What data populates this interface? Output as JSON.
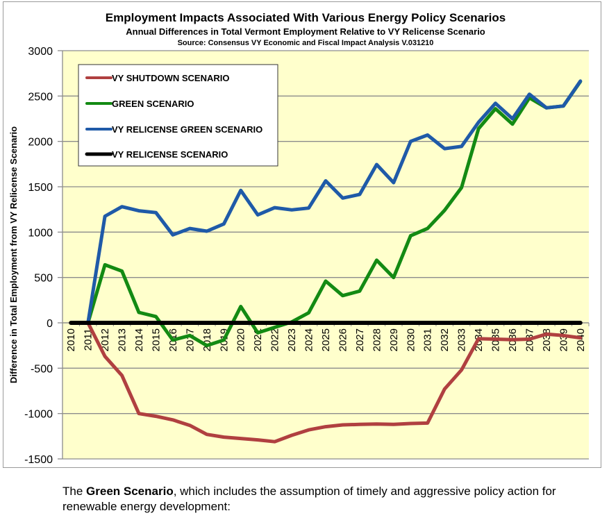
{
  "chart_data": {
    "type": "line",
    "title": "Employment Impacts Associated With Various Energy Policy Scenarios",
    "subtitle": "Annual Differences in Total Vermont Employment Relative to VY Relicense Scenario",
    "source": "Source:  Consensus VY Economic and Fiscal Impact Analysis V.031210",
    "xlabel": "",
    "ylabel": "Difference in Total Employment from VY Relicense Scenario",
    "ylim": [
      -1500,
      3000
    ],
    "yticks": [
      3000,
      2500,
      2000,
      1500,
      1000,
      500,
      0,
      -500,
      -1000,
      -1500
    ],
    "grid": "horizontal",
    "legend_position": "top-left",
    "x": [
      "2010",
      "2011",
      "2012",
      "2013",
      "2014",
      "2015",
      "2016",
      "2017",
      "2018",
      "2019",
      "2020",
      "2021",
      "2022",
      "2023",
      "2024",
      "2025",
      "2026",
      "2027",
      "2028",
      "2029",
      "2030",
      "2031",
      "2032",
      "2033",
      "2034",
      "2035",
      "2036",
      "2037",
      "2038",
      "2039",
      "2040"
    ],
    "series": [
      {
        "name": "VY SHUTDOWN SCENARIO",
        "color": "#b04040",
        "start_index": 1,
        "values": [
          0,
          -370,
          -580,
          -1000,
          -1030,
          -1070,
          -1130,
          -1230,
          -1260,
          -1275,
          -1290,
          -1310,
          -1240,
          -1180,
          -1145,
          -1125,
          -1120,
          -1115,
          -1120,
          -1110,
          -1105,
          -730,
          -520,
          -175,
          -180,
          -185,
          -180,
          -125,
          -140,
          -165
        ]
      },
      {
        "name": "GREEN SCENARIO",
        "color": "#138a13",
        "start_index": 1,
        "values": [
          0,
          640,
          570,
          115,
          70,
          -190,
          -140,
          -250,
          -190,
          180,
          -110,
          -50,
          10,
          110,
          460,
          300,
          350,
          690,
          500,
          960,
          1040,
          1240,
          1490,
          2140,
          2360,
          2190,
          2480,
          2370,
          2390,
          2660
        ]
      },
      {
        "name": "VY RELICENSE GREEN SCENARIO",
        "color": "#1f5aa8",
        "start_index": 1,
        "values": [
          0,
          1175,
          1280,
          1235,
          1215,
          970,
          1040,
          1010,
          1090,
          1460,
          1190,
          1270,
          1245,
          1265,
          1565,
          1375,
          1415,
          1745,
          1545,
          2000,
          2070,
          1920,
          1945,
          2210,
          2420,
          2250,
          2520,
          2370,
          2390,
          2665
        ]
      },
      {
        "name": "VY RELICENSE SCENARIO",
        "color": "#000000",
        "start_index": 0,
        "values": [
          0,
          0,
          0,
          0,
          0,
          0,
          0,
          0,
          0,
          0,
          0,
          0,
          0,
          0,
          0,
          0,
          0,
          0,
          0,
          0,
          0,
          0,
          0,
          0,
          0,
          0,
          0,
          0,
          0,
          0,
          0
        ]
      }
    ]
  },
  "caption": {
    "prefix": "The ",
    "bold": "Green Scenario",
    "rest": ", which includes the assumption of timely and aggressive policy action for renewable energy development:"
  }
}
